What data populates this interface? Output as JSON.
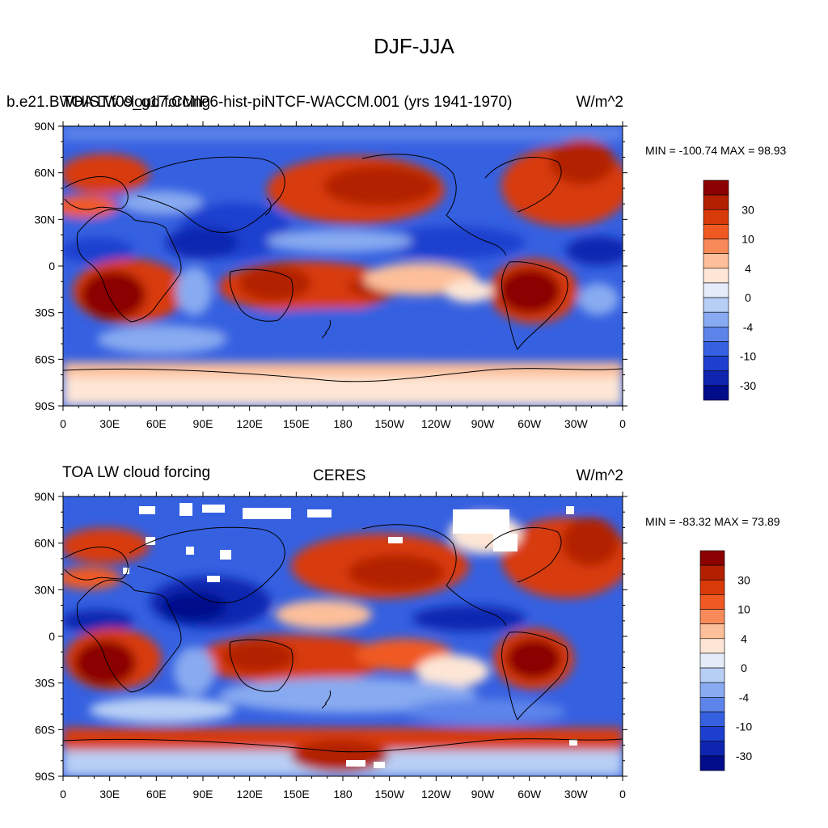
{
  "title": "DJF-JJA",
  "panels": [
    {
      "left_string": "TOA LW cloud forcing",
      "center_string": "b.e21.BWHIST.f09_g17.CMIP6-hist-piNTCF-WACCM.001 (yrs 1941-1970)",
      "right_string": "W/m^2",
      "stats": "MIN = -100.74 MAX =  98.93"
    },
    {
      "left_string": "TOA LW cloud forcing",
      "center_string": "CERES",
      "right_string": "W/m^2",
      "stats": "MIN = -83.32 MAX =  73.89"
    }
  ],
  "axes": {
    "lat_labels": [
      "90N",
      "60N",
      "30N",
      "0",
      "30S",
      "60S",
      "90S"
    ],
    "lon_labels": [
      "0",
      "30E",
      "60E",
      "90E",
      "120E",
      "150E",
      "180",
      "150W",
      "120W",
      "90W",
      "60W",
      "30W",
      "0"
    ]
  },
  "colorbar": {
    "labels": [
      "30",
      "10",
      "4",
      "0",
      "-4",
      "-10",
      "-30"
    ],
    "colors": [
      "#8b0000",
      "#b22000",
      "#d83a0a",
      "#f05a22",
      "#f88a5a",
      "#fdbf9a",
      "#fde6d6",
      "#e4ecfa",
      "#b8cff5",
      "#88aaf0",
      "#5d84ea",
      "#3560e0",
      "#1d3fcf",
      "#0e25b0",
      "#000c8a"
    ]
  }
}
